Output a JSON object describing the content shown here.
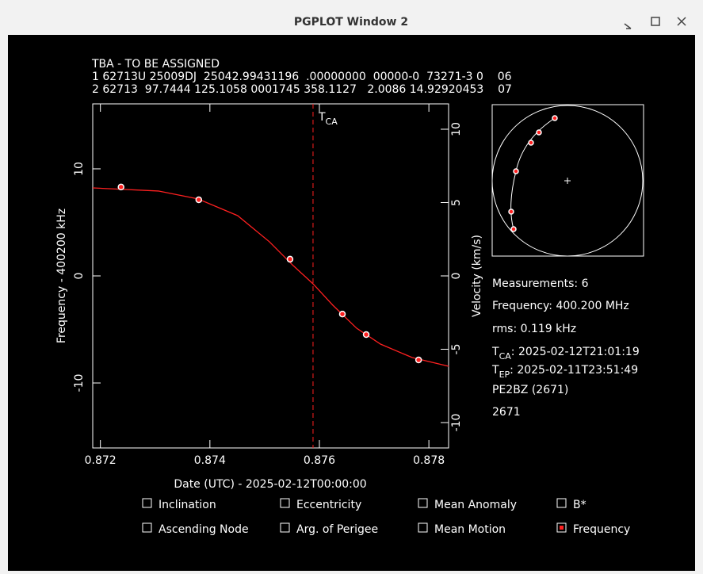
{
  "window": {
    "title": "PGPLOT Window 2"
  },
  "header": [
    "TBA - TO BE ASSIGNED",
    "1 62713U 25009DJ  25042.99431196  .00000000  00000-0  73271-3 0    06",
    "2 62713  97.7444 125.1058 0001745 358.1127   2.0086 14.92920453    07"
  ],
  "chart_data": {
    "type": "scatter",
    "x_label": "Date (UTC) - 2025-02-12T00:00:00",
    "y_label": "Frequency - 400200 kHz",
    "y2_label": "Velocity (km/s)",
    "xlim": [
      0.87186,
      0.87836
    ],
    "xticks": [
      0.872,
      0.874,
      0.876,
      0.878
    ],
    "ylim": [
      -16.07,
      16.07
    ],
    "yticks": [
      -10,
      0,
      10
    ],
    "y2lim": [
      -11.73,
      11.73
    ],
    "y2ticks": [
      -10,
      -5,
      0,
      5,
      10
    ],
    "tca": {
      "x": 0.875884,
      "label": "T",
      "subscript": "CA",
      "color": "#ff2020"
    },
    "points": {
      "color": "#ff2020",
      "x": [
        0.872377,
        0.873797,
        0.875464,
        0.87642,
        0.876855,
        0.877812
      ],
      "values": [
        8.3,
        7.11,
        1.56,
        -3.56,
        -5.48,
        -7.85
      ]
    },
    "fit": {
      "color": "#ff2020",
      "x": [
        0.87186,
        0.873058,
        0.873783,
        0.874507,
        0.875087,
        0.875522,
        0.875884,
        0.876246,
        0.876681,
        0.877116,
        0.877696,
        0.878362
      ],
      "values": [
        8.22,
        7.93,
        7.19,
        5.63,
        3.19,
        0.96,
        -0.74,
        -2.74,
        -4.89,
        -6.37,
        -7.63,
        -8.44
      ]
    }
  },
  "info": {
    "measurements": "Measurements: 6",
    "frequency": "Frequency: 400.200 MHz",
    "rms": "rms: 0.119 kHz",
    "tca": {
      "label": "T",
      "subscript": "CA",
      "value": ": 2025-02-12T21:01:19"
    },
    "tep": {
      "label": "T",
      "subscript": "EP",
      "value": ": 2025-02-11T23:51:49"
    },
    "station": "PE2BZ (2671)",
    "selected": "2671"
  },
  "checkboxes": [
    {
      "label": "Inclination",
      "checked": false
    },
    {
      "label": "Eccentricity",
      "checked": false
    },
    {
      "label": "Mean Anomaly",
      "checked": false
    },
    {
      "label": "B*",
      "checked": false
    },
    {
      "label": "Ascending Node",
      "checked": false
    },
    {
      "label": "Arg. of Perigee",
      "checked": false
    },
    {
      "label": "Mean Motion",
      "checked": false
    },
    {
      "label": "Frequency",
      "checked": true
    }
  ]
}
